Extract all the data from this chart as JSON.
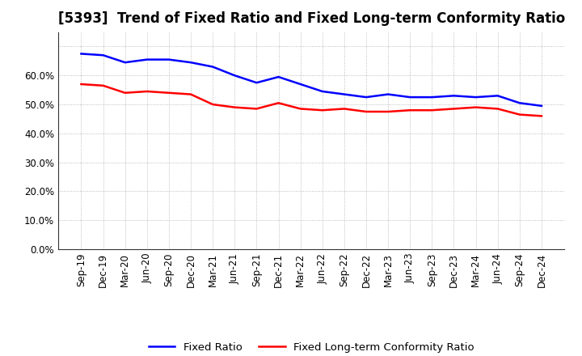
{
  "title": "[5393]  Trend of Fixed Ratio and Fixed Long-term Conformity Ratio",
  "x_labels": [
    "Sep-19",
    "Dec-19",
    "Mar-20",
    "Jun-20",
    "Sep-20",
    "Dec-20",
    "Mar-21",
    "Jun-21",
    "Sep-21",
    "Dec-21",
    "Mar-22",
    "Jun-22",
    "Sep-22",
    "Dec-22",
    "Mar-23",
    "Jun-23",
    "Sep-23",
    "Dec-23",
    "Mar-24",
    "Jun-24",
    "Sep-24",
    "Dec-24"
  ],
  "fixed_ratio": [
    67.5,
    67.0,
    64.5,
    65.5,
    65.5,
    64.5,
    63.0,
    60.0,
    57.5,
    59.5,
    57.0,
    54.5,
    53.5,
    52.5,
    53.5,
    52.5,
    52.5,
    53.0,
    52.5,
    53.0,
    50.5,
    49.5
  ],
  "fixed_lt_ratio": [
    57.0,
    56.5,
    54.0,
    54.5,
    54.0,
    53.5,
    50.0,
    49.0,
    48.5,
    50.5,
    48.5,
    48.0,
    48.5,
    47.5,
    47.5,
    48.0,
    48.0,
    48.5,
    49.0,
    48.5,
    46.5,
    46.0
  ],
  "fixed_ratio_color": "#0000FF",
  "fixed_lt_ratio_color": "#FF0000",
  "ylim": [
    0,
    75
  ],
  "yticks": [
    0,
    10,
    20,
    30,
    40,
    50,
    60,
    70
  ],
  "ytick_labels": [
    "0.0%",
    "10.0%",
    "20.0%",
    "30.0%",
    "40.0%",
    "50.0%",
    "60.0%",
    ""
  ],
  "background_color": "#FFFFFF",
  "grid_color": "#888888",
  "legend_fixed": "Fixed Ratio",
  "legend_lt": "Fixed Long-term Conformity Ratio",
  "title_fontsize": 12,
  "tick_fontsize": 8.5,
  "legend_fontsize": 9.5,
  "line_width": 1.8
}
